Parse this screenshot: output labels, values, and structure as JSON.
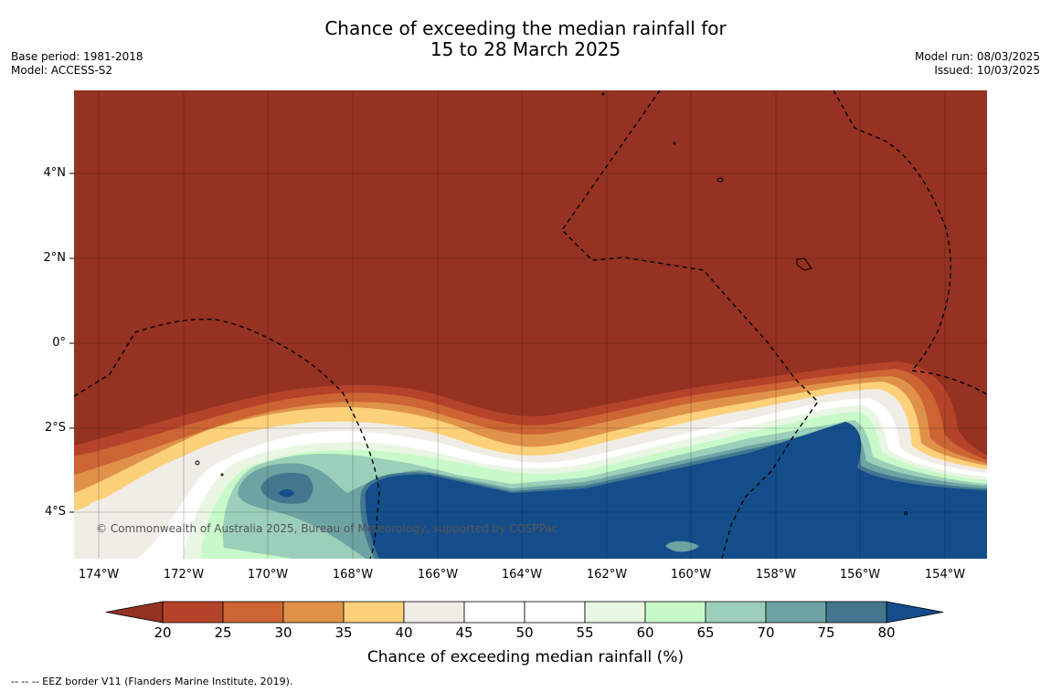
{
  "title_line1": "Chance of exceeding the median rainfall for",
  "title_line2": "15 to 28 March 2025",
  "meta_left": [
    "Base period: 1981-2018",
    "Model: ACCESS-S2"
  ],
  "meta_right": [
    "Model run: 08/03/2025",
    "Issued: 10/03/2025"
  ],
  "lat_labels": [
    "4°N",
    "2°N",
    "0°",
    "2°S",
    "4°S"
  ],
  "lon_labels": [
    "174°W",
    "172°W",
    "170°W",
    "168°W",
    "166°W",
    "164°W",
    "162°W",
    "160°W",
    "158°W",
    "156°W",
    "154°W"
  ],
  "colorbar": {
    "ticks": [
      "20",
      "25",
      "30",
      "35",
      "40",
      "45",
      "50",
      "55",
      "60",
      "65",
      "70",
      "75",
      "80"
    ],
    "colors": [
      "#953222",
      "#b5432a",
      "#cc6434",
      "#e0924a",
      "#fdd07a",
      "#efede6",
      "#ffffff",
      "#ffffff",
      "#e9f6e4",
      "#c8fac9",
      "#9ccfba",
      "#6ea3a3",
      "#44778f",
      "#144d8a"
    ],
    "label": "Chance of exceeding median rainfall (%)"
  },
  "copyright": "© Commonwealth of Australia 2025, Bureau of Meteorology, supported by COSPPac",
  "footnote": "--  --  -- EEZ border V11 (Flanders Marine Institute, 2019)."
}
